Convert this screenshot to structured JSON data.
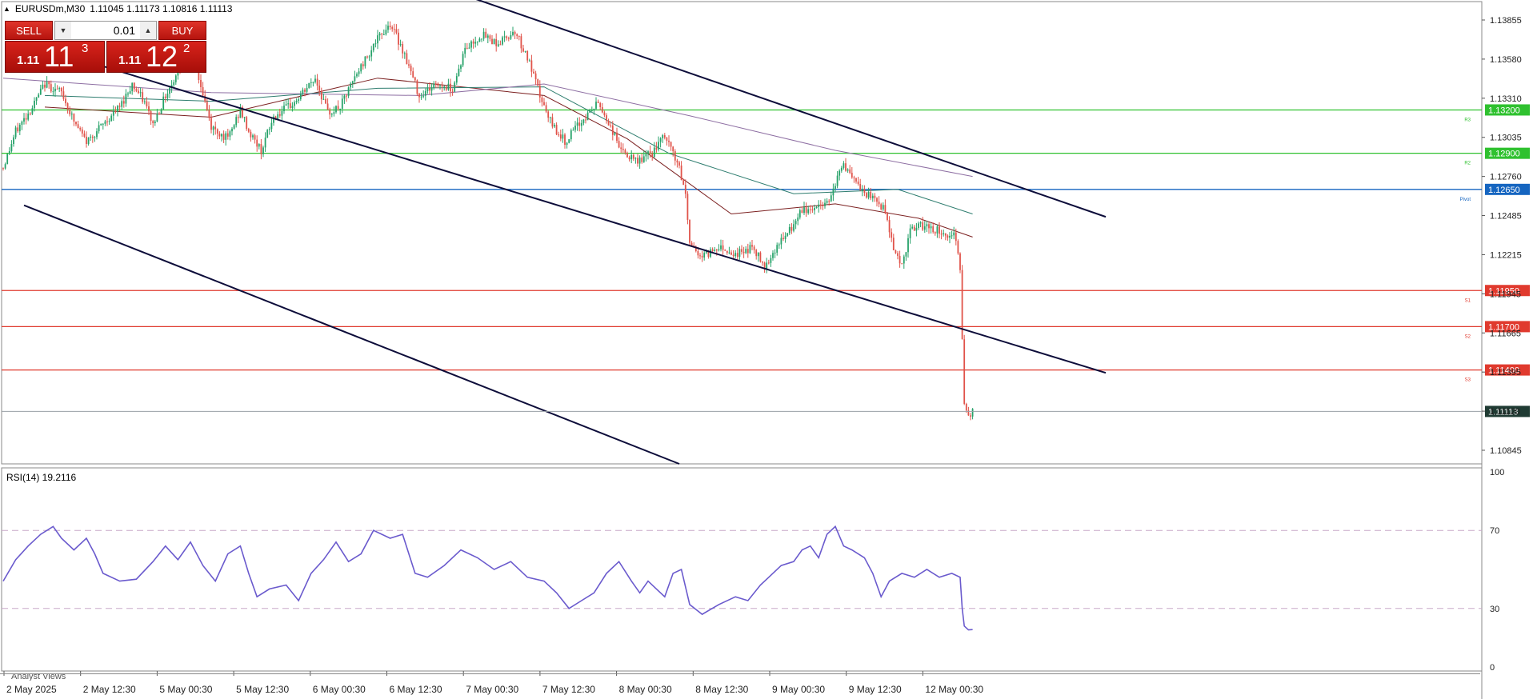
{
  "header": {
    "symbol": "EURUSDm,M30",
    "ohlc": "1.11045 1.11173 1.10816 1.11113"
  },
  "trade_panel": {
    "sell_label": "SELL",
    "buy_label": "BUY",
    "volume": "0.01",
    "sell_price_small": "1.11",
    "sell_price_big": "11",
    "sell_price_sup": "3",
    "buy_price_small": "1.11",
    "buy_price_big": "12",
    "buy_price_sup": "2"
  },
  "colors": {
    "bull": "#26a269",
    "bear": "#e0534a",
    "resistance": "#2fc12f",
    "support": "#e03a2e",
    "pivot": "#1565c0",
    "channel": "#0d0d3a",
    "rsi_line": "#6a5acd",
    "current_price_bg": "#1f3b33"
  },
  "rsi_header": "RSI(14) 19.2116",
  "analyst_tab": "Analyst Views",
  "chart_data": [
    {
      "type": "candlestick",
      "title": "EURUSDm,M30",
      "y_ticks": [
        "1.13855",
        "1.13580",
        "1.13310",
        "1.13035",
        "1.12760",
        "1.12485",
        "1.12215",
        "1.11945",
        "1.11665",
        "1.11395",
        "1.11120",
        "1.10845"
      ],
      "ylim": [
        1.1075,
        1.1395
      ],
      "x_ticks": [
        "2 May 2025",
        "2 May 12:30",
        "5 May 00:30",
        "5 May 12:30",
        "6 May 00:30",
        "6 May 12:30",
        "7 May 00:30",
        "7 May 12:30",
        "8 May 00:30",
        "8 May 12:30",
        "9 May 00:30",
        "9 May 12:30",
        "12 May 00:30"
      ],
      "levels": [
        {
          "name": "R3",
          "price": "1.13200",
          "value": 1.132,
          "kind": "resistance"
        },
        {
          "name": "R2",
          "price": "1.12900",
          "value": 1.129,
          "kind": "resistance"
        },
        {
          "name": "Pivot",
          "price": "1.12650",
          "value": 1.1265,
          "kind": "pivot"
        },
        {
          "name": "S1",
          "price": "1.11950",
          "value": 1.1195,
          "kind": "support"
        },
        {
          "name": "S2",
          "price": "1.11700",
          "value": 1.117,
          "kind": "support"
        },
        {
          "name": "S3",
          "price": "1.11400",
          "value": 1.114,
          "kind": "support"
        }
      ],
      "current_price": "1.11113",
      "current_value": 1.11113,
      "channel_lines": [
        {
          "from": {
            "bar": 90,
            "price": 1.1465
          },
          "to": {
            "bar": 530,
            "price": 1.1246
          }
        },
        {
          "from": {
            "bar": 10,
            "price": 1.1367
          },
          "to": {
            "bar": 530,
            "price": 1.1138
          }
        },
        {
          "from": {
            "bar": 10,
            "price": 1.1254
          },
          "to": {
            "bar": 325,
            "price": 1.1075
          }
        }
      ],
      "close_path": [
        [
          0,
          1.128
        ],
        [
          6,
          1.1305
        ],
        [
          14,
          1.1322
        ],
        [
          20,
          1.1338
        ],
        [
          28,
          1.1332
        ],
        [
          34,
          1.1312
        ],
        [
          40,
          1.1298
        ],
        [
          48,
          1.131
        ],
        [
          56,
          1.1322
        ],
        [
          62,
          1.1338
        ],
        [
          68,
          1.1325
        ],
        [
          72,
          1.131
        ],
        [
          78,
          1.133
        ],
        [
          86,
          1.1352
        ],
        [
          90,
          1.1365
        ],
        [
          94,
          1.1342
        ],
        [
          100,
          1.1308
        ],
        [
          108,
          1.13
        ],
        [
          114,
          1.132
        ],
        [
          118,
          1.1305
        ],
        [
          124,
          1.1292
        ],
        [
          130,
          1.1315
        ],
        [
          140,
          1.1325
        ],
        [
          150,
          1.1342
        ],
        [
          156,
          1.1318
        ],
        [
          162,
          1.1322
        ],
        [
          170,
          1.1345
        ],
        [
          178,
          1.1365
        ],
        [
          186,
          1.138
        ],
        [
          192,
          1.1362
        ],
        [
          200,
          1.133
        ],
        [
          208,
          1.1338
        ],
        [
          216,
          1.1335
        ],
        [
          222,
          1.1362
        ],
        [
          230,
          1.1372
        ],
        [
          238,
          1.1366
        ],
        [
          246,
          1.1375
        ],
        [
          252,
          1.1356
        ],
        [
          258,
          1.133
        ],
        [
          262,
          1.1314
        ],
        [
          270,
          1.1298
        ],
        [
          278,
          1.1312
        ],
        [
          286,
          1.1325
        ],
        [
          292,
          1.1308
        ],
        [
          298,
          1.129
        ],
        [
          304,
          1.1284
        ],
        [
          312,
          1.129
        ],
        [
          318,
          1.1302
        ],
        [
          324,
          1.1284
        ],
        [
          328,
          1.1262
        ],
        [
          330,
          1.1228
        ],
        [
          336,
          1.1218
        ],
        [
          344,
          1.1226
        ],
        [
          352,
          1.122
        ],
        [
          360,
          1.1225
        ],
        [
          366,
          1.1212
        ],
        [
          372,
          1.1226
        ],
        [
          378,
          1.1236
        ],
        [
          384,
          1.125
        ],
        [
          390,
          1.1252
        ],
        [
          396,
          1.1256
        ],
        [
          400,
          1.127
        ],
        [
          404,
          1.1283
        ],
        [
          408,
          1.1272
        ],
        [
          414,
          1.1262
        ],
        [
          420,
          1.1257
        ],
        [
          424,
          1.125
        ],
        [
          428,
          1.1225
        ],
        [
          432,
          1.1212
        ],
        [
          436,
          1.1236
        ],
        [
          442,
          1.124
        ],
        [
          448,
          1.1237
        ],
        [
          454,
          1.1234
        ],
        [
          458,
          1.1232
        ],
        [
          460,
          1.1212
        ],
        [
          461,
          1.116
        ],
        [
          462,
          1.1115
        ],
        [
          464,
          1.1108
        ],
        [
          466,
          1.1111
        ]
      ],
      "moving_averages": [
        {
          "color": "#7b1f1f",
          "path": [
            [
              20,
              1.1322
            ],
            [
              100,
              1.1315
            ],
            [
              180,
              1.1342
            ],
            [
              260,
              1.133
            ],
            [
              300,
              1.13
            ],
            [
              350,
              1.1248
            ],
            [
              400,
              1.1255
            ],
            [
              440,
              1.1245
            ],
            [
              466,
              1.1232
            ]
          ]
        },
        {
          "color": "#2e7d6f",
          "path": [
            [
              20,
              1.133
            ],
            [
              100,
              1.1326
            ],
            [
              180,
              1.1335
            ],
            [
              260,
              1.1336
            ],
            [
              320,
              1.129
            ],
            [
              380,
              1.1262
            ],
            [
              430,
              1.1265
            ],
            [
              466,
              1.1248
            ]
          ]
        },
        {
          "color": "#8e6fa3",
          "path": [
            [
              0,
              1.1342
            ],
            [
              100,
              1.1332
            ],
            [
              200,
              1.133
            ],
            [
              260,
              1.1338
            ],
            [
              330,
              1.1316
            ],
            [
              400,
              1.1292
            ],
            [
              466,
              1.1274
            ]
          ]
        }
      ]
    },
    {
      "type": "line",
      "title": "RSI(14) 19.2116",
      "ylim": [
        0,
        100
      ],
      "y_ticks": [
        "100",
        "70",
        "30",
        "0"
      ],
      "levels": [
        70,
        30
      ],
      "current": 19.2116,
      "path": [
        [
          0,
          44
        ],
        [
          6,
          55
        ],
        [
          12,
          62
        ],
        [
          18,
          68
        ],
        [
          24,
          72
        ],
        [
          28,
          66
        ],
        [
          34,
          60
        ],
        [
          40,
          66
        ],
        [
          44,
          58
        ],
        [
          48,
          48
        ],
        [
          56,
          44
        ],
        [
          64,
          45
        ],
        [
          72,
          54
        ],
        [
          78,
          62
        ],
        [
          84,
          55
        ],
        [
          90,
          64
        ],
        [
          96,
          52
        ],
        [
          102,
          44
        ],
        [
          108,
          58
        ],
        [
          114,
          62
        ],
        [
          118,
          48
        ],
        [
          122,
          36
        ],
        [
          128,
          40
        ],
        [
          136,
          42
        ],
        [
          142,
          34
        ],
        [
          148,
          48
        ],
        [
          154,
          55
        ],
        [
          160,
          64
        ],
        [
          166,
          54
        ],
        [
          172,
          58
        ],
        [
          178,
          70
        ],
        [
          186,
          66
        ],
        [
          192,
          68
        ],
        [
          198,
          48
        ],
        [
          204,
          46
        ],
        [
          212,
          52
        ],
        [
          220,
          60
        ],
        [
          228,
          56
        ],
        [
          236,
          50
        ],
        [
          244,
          54
        ],
        [
          252,
          46
        ],
        [
          260,
          44
        ],
        [
          266,
          38
        ],
        [
          272,
          30
        ],
        [
          278,
          34
        ],
        [
          284,
          38
        ],
        [
          290,
          48
        ],
        [
          296,
          54
        ],
        [
          302,
          44
        ],
        [
          306,
          38
        ],
        [
          310,
          44
        ],
        [
          314,
          40
        ],
        [
          318,
          36
        ],
        [
          322,
          48
        ],
        [
          326,
          50
        ],
        [
          330,
          32
        ],
        [
          336,
          27
        ],
        [
          344,
          32
        ],
        [
          352,
          36
        ],
        [
          358,
          34
        ],
        [
          364,
          42
        ],
        [
          368,
          46
        ],
        [
          374,
          52
        ],
        [
          380,
          54
        ],
        [
          384,
          60
        ],
        [
          388,
          62
        ],
        [
          392,
          56
        ],
        [
          396,
          68
        ],
        [
          400,
          72
        ],
        [
          404,
          62
        ],
        [
          408,
          60
        ],
        [
          414,
          56
        ],
        [
          418,
          48
        ],
        [
          422,
          36
        ],
        [
          426,
          44
        ],
        [
          432,
          48
        ],
        [
          438,
          46
        ],
        [
          444,
          50
        ],
        [
          450,
          46
        ],
        [
          456,
          48
        ],
        [
          460,
          46
        ],
        [
          461,
          30
        ],
        [
          462,
          21
        ],
        [
          464,
          19
        ],
        [
          466,
          19.2
        ]
      ]
    }
  ]
}
